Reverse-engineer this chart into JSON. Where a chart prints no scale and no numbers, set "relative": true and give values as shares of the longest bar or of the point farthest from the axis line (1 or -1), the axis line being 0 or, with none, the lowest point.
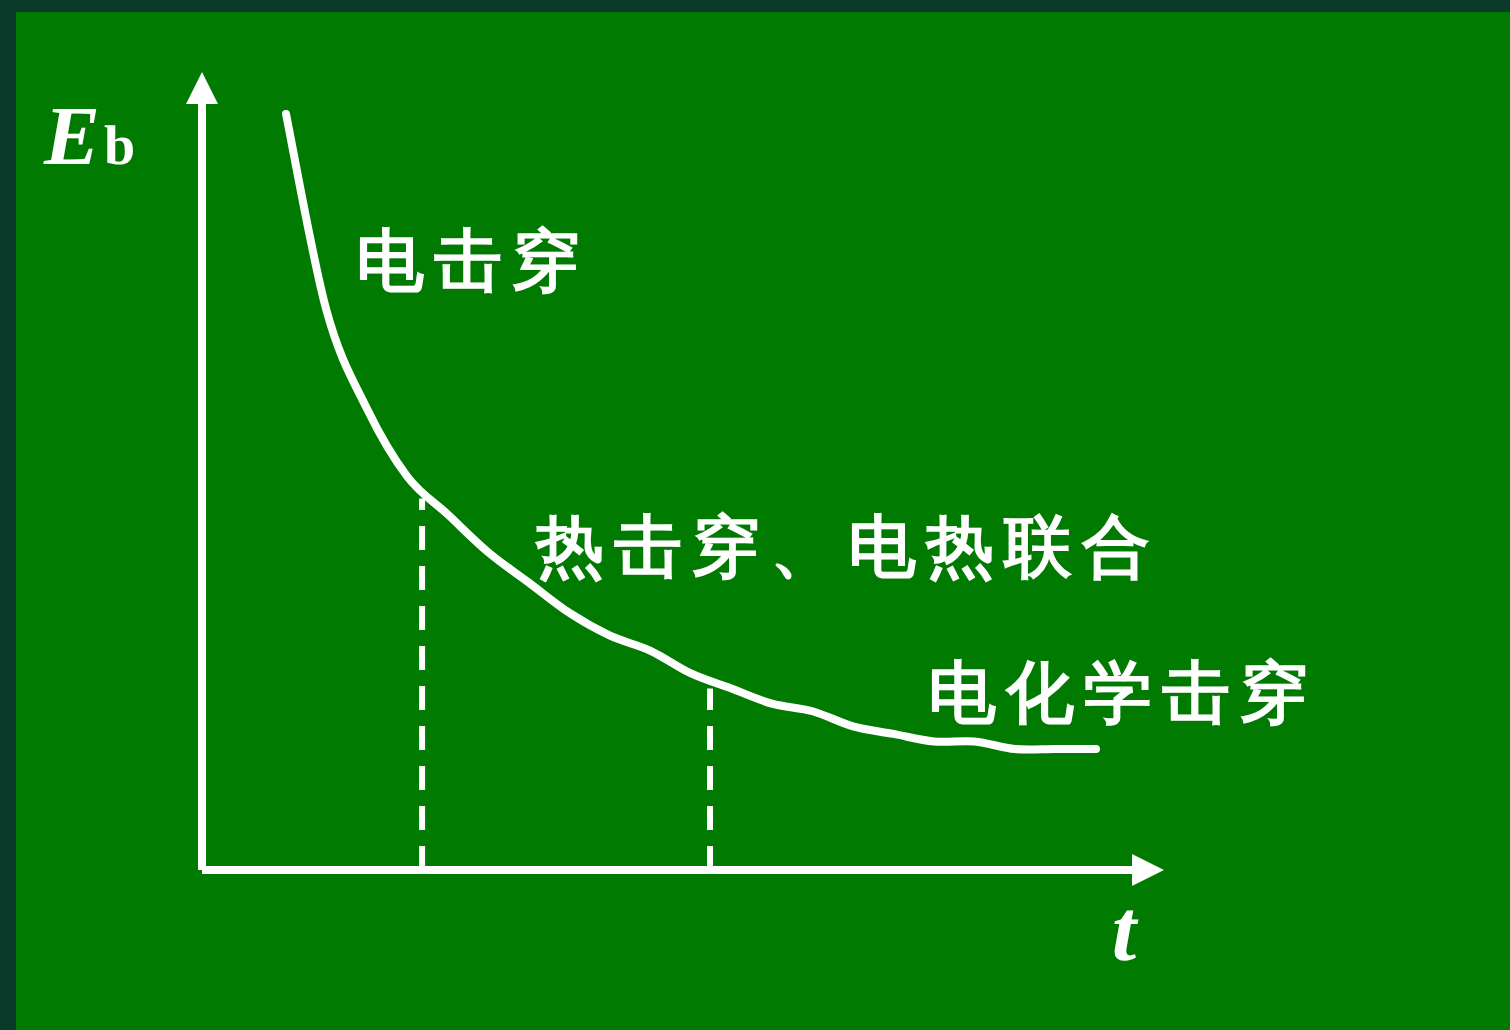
{
  "chart_data": {
    "type": "line",
    "relative": true,
    "xlabel": "t",
    "ylabel": "E$_{b}$",
    "categories": [
      null,
      null,
      null,
      null,
      null,
      null,
      null,
      null,
      null,
      null,
      null,
      null,
      null,
      null,
      null,
      null,
      null,
      null,
      null,
      null,
      null
    ],
    "series": [
      {
        "color": "#ffffff",
        "values": [
          1,
          0.74,
          0.61,
          0.52,
          0.47,
          0.42,
          0.38,
          0.34,
          0.31,
          0.29,
          0.26,
          0.24,
          0.22,
          0.21,
          0.19,
          0.18,
          0.17,
          0.17,
          0.16,
          0.16,
          0.16
        ]
      }
    ],
    "marker": "none",
    "line_style": "solid",
    "annotations": [
      "电击穿",
      "热击穿、电热联合",
      "电化学击穿"
    ]
  }
}
